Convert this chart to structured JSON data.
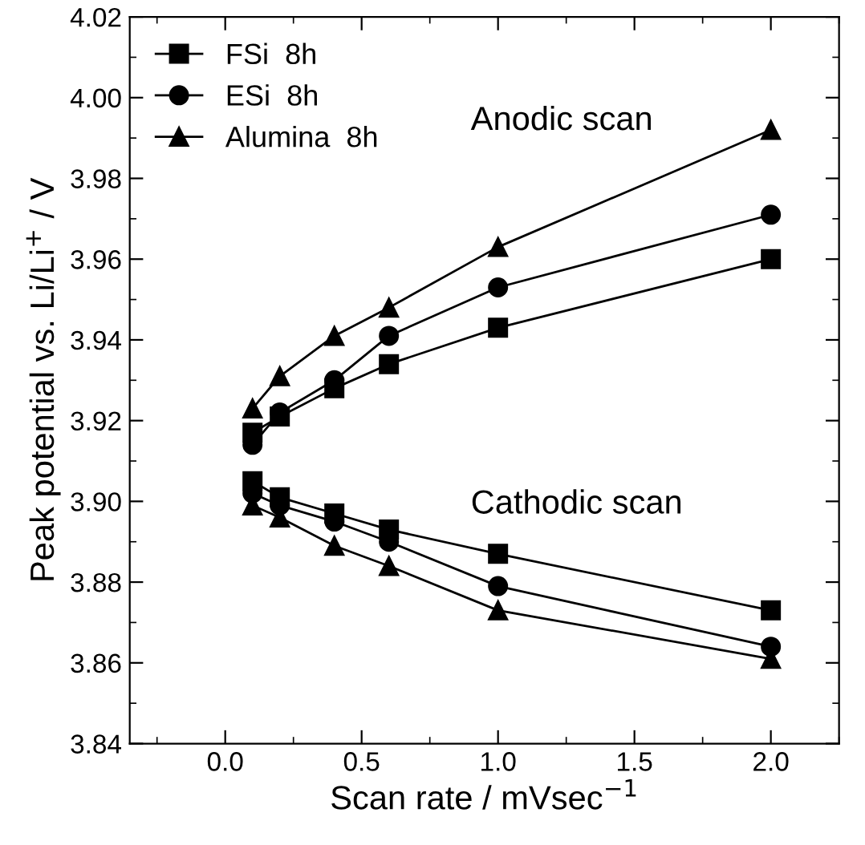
{
  "chart_data": {
    "type": "line",
    "xlabel": "Scan rate / mVsec$^{−1}$",
    "ylabel": "Peak potential vs. Li/Li$^{+}$ / V",
    "x": [
      0.1,
      0.2,
      0.4,
      0.6,
      1.0,
      2.0
    ],
    "series": [
      {
        "name": "FSi  8h",
        "color": "#000000",
        "marker": "square",
        "values": [
          3.917,
          3.921,
          3.928,
          3.934,
          3.943,
          3.96
        ]
      },
      {
        "name": "ESi  8h",
        "color": "#000000",
        "marker": "circle",
        "values": [
          3.914,
          3.922,
          3.93,
          3.941,
          3.953,
          3.971
        ]
      },
      {
        "name": "Alumina  8h",
        "color": "#000000",
        "marker": "triangle",
        "values": [
          3.923,
          3.931,
          3.941,
          3.948,
          3.963,
          3.992
        ]
      },
      {
        "color": "#000000",
        "marker": "square",
        "values": [
          3.905,
          3.901,
          3.897,
          3.893,
          3.887,
          3.873
        ]
      },
      {
        "color": "#000000",
        "marker": "circle",
        "values": [
          3.902,
          3.899,
          3.895,
          3.89,
          3.879,
          3.864
        ]
      },
      {
        "color": "#000000",
        "marker": "triangle",
        "values": [
          3.899,
          3.896,
          3.889,
          3.884,
          3.873,
          3.861
        ]
      }
    ],
    "xlim": [
      -0.35,
      2.25
    ],
    "xticks": [
      {
        "value": 0,
        "label": "0.0"
      },
      0.5,
      {
        "value": 1,
        "label": "1.0"
      },
      1.5,
      {
        "value": 2,
        "label": "2.0"
      }
    ],
    "ylim": [
      3.84,
      4.02
    ],
    "yticks": [
      3.84,
      3.86,
      3.88,
      {
        "value": 3.9,
        "label": "3.90"
      },
      3.92,
      3.94,
      3.96,
      3.98,
      {
        "value": 4,
        "label": "4.00"
      },
      4.02
    ],
    "annotations": [
      "Anodic scan",
      "Cathodic scan"
    ],
    "legend": "top left",
    "grid": false,
    "line_style": "solid"
  }
}
